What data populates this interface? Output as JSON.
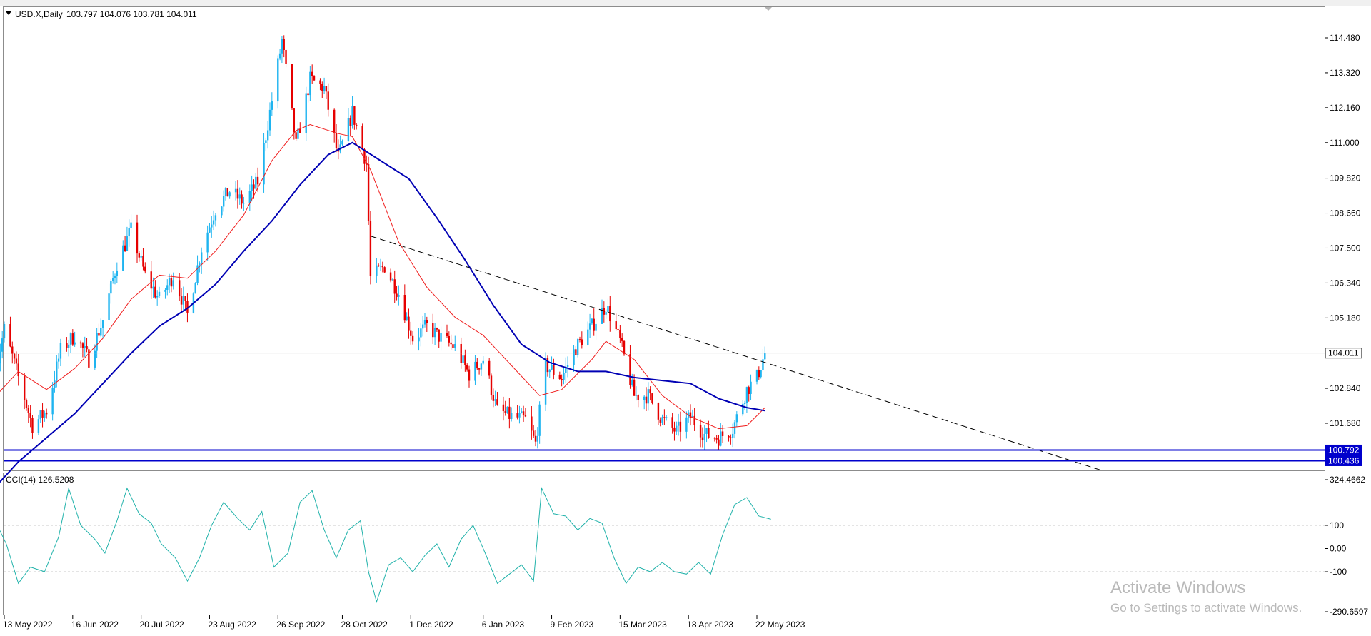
{
  "header": {
    "symbol_caption": "USD.X,Daily",
    "ohlc": "103.797 104.076 103.781 104.011"
  },
  "indicator": {
    "caption": "CCI(14) 126.5208"
  },
  "price_axis": {
    "ticks": [
      114.48,
      113.32,
      112.16,
      111.0,
      109.82,
      108.66,
      107.5,
      106.34,
      105.18,
      102.84,
      101.68
    ],
    "tick_labels": [
      "114.480",
      "113.320",
      "112.160",
      "111.000",
      "109.820",
      "108.660",
      "107.500",
      "106.340",
      "105.180",
      "102.840",
      "101.680"
    ]
  },
  "price_tags": [
    {
      "value": 104.011,
      "label": "104.011",
      "color": "#ffffff",
      "text_color": "#000000"
    },
    {
      "value": 100.792,
      "label": "100.792",
      "color": "#0000cc",
      "text_color": "#ffffff"
    },
    {
      "value": 100.436,
      "label": "100.436",
      "color": "#0000cc",
      "text_color": "#ffffff"
    }
  ],
  "cci_axis": {
    "ticks": [
      324.4662,
      100,
      0,
      -100,
      -290.6597
    ],
    "tick_labels": [
      "324.4662",
      "100",
      "0.00",
      "-100",
      "-290.6597"
    ]
  },
  "time_axis": [
    "13 May 2022",
    "16 Jun 2022",
    "20 Jul 2022",
    "23 Aug 2022",
    "26 Sep 2022",
    "28 Oct 2022",
    "1 Dec 2022",
    "6 Jan 2023",
    "9 Feb 2023",
    "15 Mar 2023",
    "18 Apr 2023",
    "22 May 2023"
  ],
  "colors": {
    "bull": "#1eb4f0",
    "bear": "#e60000",
    "ma_fast": "#f01e1e",
    "ma_slow": "#0000b4",
    "cci_line": "#20b2aa",
    "trendline": "#000000"
  },
  "chart_data": {
    "type": "candlestick",
    "symbol": "USD.X",
    "timeframe": "Daily",
    "last_close": 104.011,
    "ylim": [
      99.9,
      115.5
    ],
    "grid": false,
    "anchors": [
      [
        "2022-05-09",
        103.5
      ],
      [
        "2022-05-13",
        104.8
      ],
      [
        "2022-05-20",
        103.2
      ],
      [
        "2022-05-27",
        101.6
      ],
      [
        "2022-06-03",
        102.1
      ],
      [
        "2022-06-10",
        104.1
      ],
      [
        "2022-06-17",
        104.6
      ],
      [
        "2022-06-24",
        103.8
      ],
      [
        "2022-07-01",
        105.1
      ],
      [
        "2022-07-08",
        107.0
      ],
      [
        "2022-07-15",
        108.1
      ],
      [
        "2022-07-22",
        106.6
      ],
      [
        "2022-07-29",
        105.8
      ],
      [
        "2022-08-05",
        106.6
      ],
      [
        "2022-08-12",
        105.3
      ],
      [
        "2022-08-19",
        107.5
      ],
      [
        "2022-08-26",
        108.8
      ],
      [
        "2022-09-02",
        109.4
      ],
      [
        "2022-09-09",
        109.0
      ],
      [
        "2022-09-16",
        109.7
      ],
      [
        "2022-09-23",
        112.4
      ],
      [
        "2022-09-28",
        114.4
      ],
      [
        "2022-10-05",
        110.9
      ],
      [
        "2022-10-12",
        113.1
      ],
      [
        "2022-10-19",
        112.8
      ],
      [
        "2022-10-26",
        110.5
      ],
      [
        "2022-11-02",
        112.0
      ],
      [
        "2022-11-09",
        110.3
      ],
      [
        "2022-11-11",
        106.5
      ],
      [
        "2022-11-18",
        106.9
      ],
      [
        "2022-11-25",
        106.0
      ],
      [
        "2022-12-02",
        104.5
      ],
      [
        "2022-12-09",
        104.9
      ],
      [
        "2022-12-16",
        104.5
      ],
      [
        "2022-12-23",
        104.2
      ],
      [
        "2022-12-30",
        103.3
      ],
      [
        "2023-01-06",
        103.8
      ],
      [
        "2023-01-13",
        102.1
      ],
      [
        "2023-01-20",
        101.9
      ],
      [
        "2023-01-27",
        101.8
      ],
      [
        "2023-02-01",
        101.0
      ],
      [
        "2023-02-06",
        103.6
      ],
      [
        "2023-02-14",
        103.2
      ],
      [
        "2023-02-21",
        104.2
      ],
      [
        "2023-03-01",
        104.9
      ],
      [
        "2023-03-08",
        105.6
      ],
      [
        "2023-03-15",
        104.4
      ],
      [
        "2023-03-22",
        102.6
      ],
      [
        "2023-03-29",
        102.6
      ],
      [
        "2023-04-05",
        101.8
      ],
      [
        "2023-04-12",
        101.4
      ],
      [
        "2023-04-19",
        101.9
      ],
      [
        "2023-04-26",
        101.3
      ],
      [
        "2023-05-03",
        101.2
      ],
      [
        "2023-05-10",
        101.5
      ],
      [
        "2023-05-17",
        102.8
      ],
      [
        "2023-05-22",
        103.2
      ],
      [
        "2023-05-26",
        104.0
      ]
    ],
    "series": [
      {
        "type": "moving_average",
        "points": [
          [
            "2022-05-09",
            102.6
          ],
          [
            "2022-05-20",
            103.4
          ],
          [
            "2022-06-03",
            102.8
          ],
          [
            "2022-06-17",
            103.5
          ],
          [
            "2022-07-01",
            104.5
          ],
          [
            "2022-07-15",
            105.8
          ],
          [
            "2022-07-29",
            106.6
          ],
          [
            "2022-08-12",
            106.5
          ],
          [
            "2022-08-26",
            107.4
          ],
          [
            "2022-09-09",
            108.6
          ],
          [
            "2022-09-23",
            110.4
          ],
          [
            "2022-10-05",
            111.4
          ],
          [
            "2022-10-12",
            111.6
          ],
          [
            "2022-10-26",
            111.3
          ],
          [
            "2022-11-02",
            111.2
          ],
          [
            "2022-11-11",
            110.1
          ],
          [
            "2022-11-25",
            107.7
          ],
          [
            "2022-12-09",
            106.2
          ],
          [
            "2022-12-23",
            105.2
          ],
          [
            "2023-01-06",
            104.6
          ],
          [
            "2023-01-20",
            103.6
          ],
          [
            "2023-02-03",
            102.6
          ],
          [
            "2023-02-14",
            102.8
          ],
          [
            "2023-03-01",
            103.8
          ],
          [
            "2023-03-08",
            104.4
          ],
          [
            "2023-03-22",
            103.8
          ],
          [
            "2023-04-05",
            102.6
          ],
          [
            "2023-04-19",
            101.9
          ],
          [
            "2023-05-03",
            101.5
          ],
          [
            "2023-05-17",
            101.6
          ],
          [
            "2023-05-26",
            102.2
          ]
        ]
      },
      {
        "type": "moving_average",
        "points": [
          [
            "2022-05-09",
            99.6
          ],
          [
            "2022-05-20",
            100.4
          ],
          [
            "2022-06-03",
            101.2
          ],
          [
            "2022-06-17",
            102.0
          ],
          [
            "2022-07-01",
            103.0
          ],
          [
            "2022-07-15",
            104.0
          ],
          [
            "2022-07-29",
            104.9
          ],
          [
            "2022-08-12",
            105.5
          ],
          [
            "2022-08-26",
            106.3
          ],
          [
            "2022-09-09",
            107.4
          ],
          [
            "2022-09-23",
            108.4
          ],
          [
            "2022-10-07",
            109.6
          ],
          [
            "2022-10-21",
            110.6
          ],
          [
            "2022-11-02",
            111.0
          ],
          [
            "2022-11-16",
            110.4
          ],
          [
            "2022-11-30",
            109.8
          ],
          [
            "2022-12-14",
            108.5
          ],
          [
            "2022-12-28",
            107.1
          ],
          [
            "2023-01-11",
            105.6
          ],
          [
            "2023-01-25",
            104.3
          ],
          [
            "2023-02-08",
            103.7
          ],
          [
            "2023-02-22",
            103.4
          ],
          [
            "2023-03-08",
            103.4
          ],
          [
            "2023-03-22",
            103.2
          ],
          [
            "2023-04-05",
            103.1
          ],
          [
            "2023-04-19",
            103.0
          ],
          [
            "2023-05-03",
            102.5
          ],
          [
            "2023-05-17",
            102.2
          ],
          [
            "2023-05-26",
            102.1
          ]
        ]
      }
    ],
    "trendline": {
      "from": [
        "2022-11-11",
        107.9
      ],
      "to": [
        "2023-11-10",
        100.1
      ]
    },
    "horizontal_levels": [
      100.792,
      100.436
    ],
    "cci": {
      "ylim": [
        -290.6597,
        324.4662
      ],
      "guides": [
        100,
        -100
      ],
      "last": 126.5208,
      "points": [
        [
          "2022-05-09",
          110
        ],
        [
          "2022-05-14",
          20
        ],
        [
          "2022-05-20",
          -150
        ],
        [
          "2022-05-26",
          -80
        ],
        [
          "2022-06-02",
          -100
        ],
        [
          "2022-06-09",
          50
        ],
        [
          "2022-06-14",
          260
        ],
        [
          "2022-06-20",
          100
        ],
        [
          "2022-06-27",
          40
        ],
        [
          "2022-07-02",
          -20
        ],
        [
          "2022-07-08",
          120
        ],
        [
          "2022-07-13",
          260
        ],
        [
          "2022-07-19",
          150
        ],
        [
          "2022-07-25",
          110
        ],
        [
          "2022-07-30",
          20
        ],
        [
          "2022-08-06",
          -40
        ],
        [
          "2022-08-12",
          -140
        ],
        [
          "2022-08-18",
          -40
        ],
        [
          "2022-08-24",
          100
        ],
        [
          "2022-08-30",
          200
        ],
        [
          "2022-09-06",
          130
        ],
        [
          "2022-09-12",
          80
        ],
        [
          "2022-09-18",
          160
        ],
        [
          "2022-09-24",
          -80
        ],
        [
          "2022-10-01",
          -20
        ],
        [
          "2022-10-07",
          200
        ],
        [
          "2022-10-13",
          250
        ],
        [
          "2022-10-19",
          80
        ],
        [
          "2022-10-25",
          -40
        ],
        [
          "2022-10-31",
          80
        ],
        [
          "2022-11-06",
          120
        ],
        [
          "2022-11-10",
          -100
        ],
        [
          "2022-11-14",
          -230
        ],
        [
          "2022-11-20",
          -70
        ],
        [
          "2022-11-26",
          -40
        ],
        [
          "2022-12-02",
          -100
        ],
        [
          "2022-12-08",
          -30
        ],
        [
          "2022-12-14",
          20
        ],
        [
          "2022-12-20",
          -80
        ],
        [
          "2022-12-26",
          40
        ],
        [
          "2023-01-01",
          100
        ],
        [
          "2023-01-07",
          -20
        ],
        [
          "2023-01-13",
          -150
        ],
        [
          "2023-01-19",
          -110
        ],
        [
          "2023-01-25",
          -70
        ],
        [
          "2023-01-31",
          -140
        ],
        [
          "2023-02-04",
          260
        ],
        [
          "2023-02-10",
          150
        ],
        [
          "2023-02-16",
          140
        ],
        [
          "2023-02-22",
          80
        ],
        [
          "2023-02-28",
          130
        ],
        [
          "2023-03-06",
          110
        ],
        [
          "2023-03-12",
          -40
        ],
        [
          "2023-03-18",
          -150
        ],
        [
          "2023-03-24",
          -80
        ],
        [
          "2023-03-30",
          -100
        ],
        [
          "2023-04-05",
          -60
        ],
        [
          "2023-04-11",
          -100
        ],
        [
          "2023-04-17",
          -110
        ],
        [
          "2023-04-23",
          -60
        ],
        [
          "2023-04-29",
          -110
        ],
        [
          "2023-05-05",
          60
        ],
        [
          "2023-05-11",
          190
        ],
        [
          "2023-05-17",
          220
        ],
        [
          "2023-05-23",
          140
        ],
        [
          "2023-05-29",
          126.5
        ]
      ]
    }
  }
}
